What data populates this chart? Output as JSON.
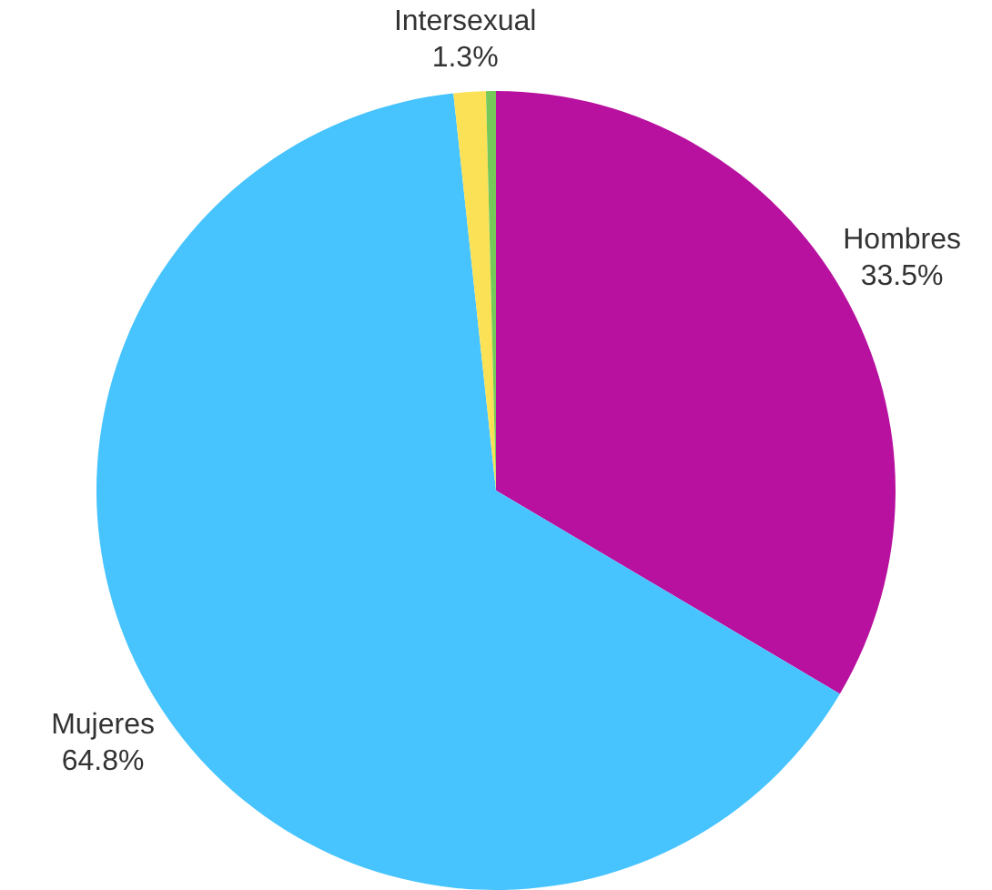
{
  "chart_data": {
    "type": "pie",
    "categories": [
      "Hombres",
      "Mujeres",
      "Intersexual",
      null
    ],
    "values": [
      33.5,
      64.8,
      1.3,
      0.4
    ],
    "colors": [
      "#b8119f",
      "#47c4fe",
      "#fbe156",
      "#76c859"
    ],
    "value_labels": [
      "33.5%",
      "64.8%",
      "1.3%",
      null
    ],
    "legend": false
  }
}
